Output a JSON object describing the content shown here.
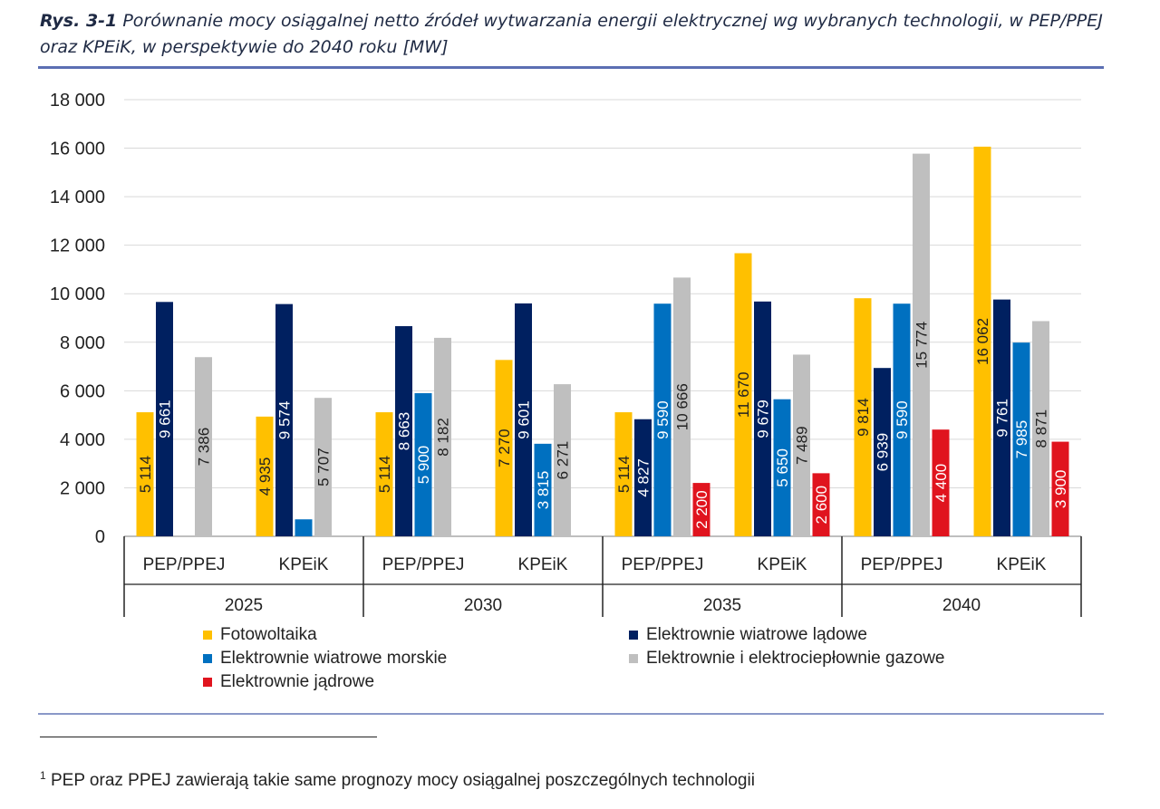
{
  "caption": {
    "number": "Rys. 3-1",
    "text": "Porównanie mocy osiągalnej netto źródeł wytwarzania energii elektrycznej wg wybranych technologii, w PEP/PPEJ oraz KPEiK, w perspektywie do 2040 roku [MW]"
  },
  "footnote": {
    "marker": "1",
    "text": "PEP oraz PPEJ zawierają takie same prognozy mocy osiągalnej poszczególnych technologii"
  },
  "chart_data": {
    "type": "bar",
    "ylim": [
      0,
      18000
    ],
    "yticks": [
      0,
      2000,
      4000,
      6000,
      8000,
      10000,
      12000,
      14000,
      16000,
      18000
    ],
    "ytick_labels": [
      "0",
      "2 000",
      "4 000",
      "6 000",
      "8 000",
      "10 000",
      "12 000",
      "14 000",
      "16 000",
      "18 000"
    ],
    "grid": true,
    "legend_position": "bottom",
    "groups": [
      {
        "year": "2025",
        "scenarios": [
          "PEP/PPEJ",
          "KPEiK"
        ]
      },
      {
        "year": "2030",
        "scenarios": [
          "PEP/PPEJ",
          "KPEiK"
        ]
      },
      {
        "year": "2035",
        "scenarios": [
          "PEP/PPEJ",
          "KPEiK"
        ]
      },
      {
        "year": "2040",
        "scenarios": [
          "PEP/PPEJ",
          "KPEiK"
        ]
      }
    ],
    "categories": [
      "2025 PEP/PPEJ",
      "2025 KPEiK",
      "2030 PEP/PPEJ",
      "2030 KPEiK",
      "2035 PEP/PPEJ",
      "2035 KPEiK",
      "2040 PEP/PPEJ",
      "2040 KPEiK"
    ],
    "series": [
      {
        "name": "Fotowoltaika",
        "color": "#FFC000",
        "values": [
          5114,
          4935,
          5114,
          7270,
          5114,
          11670,
          9814,
          16062
        ],
        "labels": [
          "5 114",
          "4 935",
          "5 114",
          "7 270",
          "5 114",
          "11 670",
          "9 814",
          "16 062"
        ]
      },
      {
        "name": "Elektrownie wiatrowe lądowe",
        "color": "#002060",
        "values": [
          9661,
          9574,
          8663,
          9601,
          4827,
          9679,
          6939,
          9761
        ],
        "labels": [
          "9 661",
          "9 574",
          "8 663",
          "9 601",
          "4 827",
          "9 679",
          "6 939",
          "9 761"
        ]
      },
      {
        "name": "Elektrownie wiatrowe morskie",
        "color": "#0070C0",
        "values": [
          null,
          700,
          5900,
          3815,
          9590,
          5650,
          9590,
          7985
        ],
        "labels": [
          "",
          "",
          "5 900",
          "3 815",
          "9 590",
          "5 650",
          "9 590",
          "7 985"
        ]
      },
      {
        "name": "Elektrownie i elektrociepłownie gazowe",
        "color": "#BFBFBF",
        "values": [
          7386,
          5707,
          8182,
          6271,
          10666,
          7489,
          15774,
          8871
        ],
        "labels": [
          "7 386",
          "5 707",
          "8 182",
          "6 271",
          "10 666",
          "7 489",
          "15 774",
          "8 871"
        ]
      },
      {
        "name": "Elektrownie jądrowe",
        "color": "#E0141E",
        "values": [
          null,
          null,
          null,
          null,
          2200,
          2600,
          4400,
          3900
        ],
        "labels": [
          "",
          "",
          "",
          "",
          "2 200",
          "2 600",
          "4 400",
          "3 900"
        ]
      }
    ],
    "legend_order": [
      0,
      1,
      2,
      3,
      4
    ]
  }
}
